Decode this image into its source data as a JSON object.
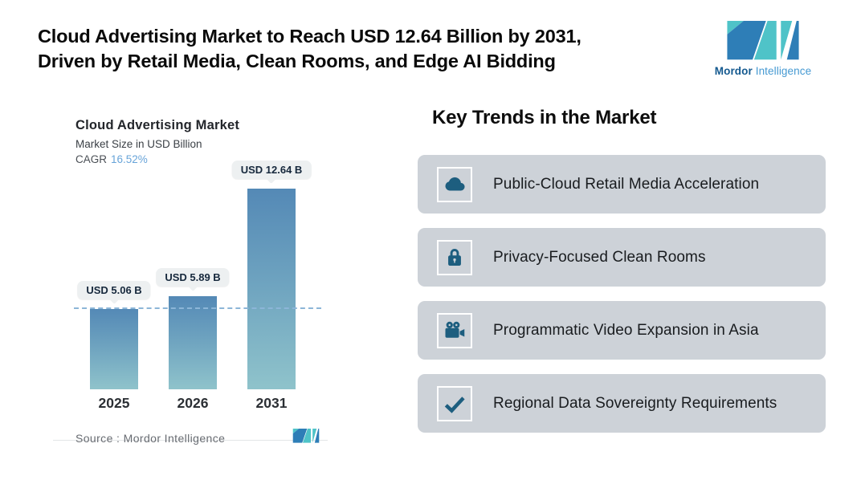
{
  "header": {
    "title": "Cloud Advertising Market to Reach USD 12.64 Billion by 2031,\nDriven by Retail Media, Clean Rooms, and Edge AI Bidding",
    "brand": {
      "word_bold": "Mordor",
      "word_light": "Intelligence"
    }
  },
  "chart": {
    "title": "Cloud Advertising Market",
    "subtitle": "Market Size in USD Billion",
    "cagr_label": "CAGR",
    "cagr_value": "16.52%",
    "source_label": "Source :",
    "source_value": "Mordor Intelligence"
  },
  "chart_data": {
    "type": "bar",
    "title": "Cloud Advertising Market",
    "subtitle": "Market Size in USD Billion",
    "unit": "USD Billion",
    "cagr_percent": 16.52,
    "categories": [
      "2025",
      "2026",
      "2031"
    ],
    "values": [
      5.06,
      5.89,
      12.64
    ],
    "value_labels": [
      "USD 5.06 B",
      "USD 5.89 B",
      "USD 12.64 B"
    ],
    "ylim": [
      0,
      12.64
    ],
    "grid": false,
    "reference_line": {
      "at_value": 5.06,
      "style": "dashed"
    },
    "source": "Mordor Intelligence"
  },
  "trends": {
    "heading": "Key Trends in the Market",
    "items": [
      {
        "icon": "cloud-icon",
        "label": "Public-Cloud Retail Media Acceleration"
      },
      {
        "icon": "lock-icon",
        "label": "Privacy-Focused Clean Rooms"
      },
      {
        "icon": "video-camera-icon",
        "label": "Programmatic Video Expansion in Asia"
      },
      {
        "icon": "checkmark-icon",
        "label": "Regional Data Sovereignty Requirements"
      }
    ]
  },
  "colors": {
    "bar_gradient_top": "#5489b6",
    "bar_gradient_bottom": "#8fc3cb",
    "reference_line": "#8cb6d8",
    "badge_bg": "#edf0f1",
    "trend_card_bg": "#cdd2d8",
    "trend_icon": "#1d5e7f",
    "logo_teal": "#4fc3c8",
    "logo_blue": "#2e7eb7",
    "cagr_value_text": "#68a4d9"
  }
}
